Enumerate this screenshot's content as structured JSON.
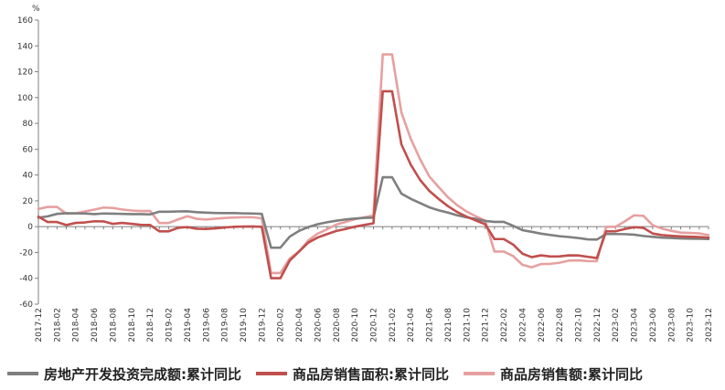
{
  "chart_data": {
    "type": "line",
    "unit": "%",
    "ylim": [
      -60,
      160
    ],
    "yticks": [
      -60,
      -40,
      -20,
      0,
      20,
      40,
      60,
      80,
      100,
      120,
      140,
      160
    ],
    "x": [
      "2017-12",
      "2018-01",
      "2018-02",
      "2018-03",
      "2018-04",
      "2018-05",
      "2018-06",
      "2018-07",
      "2018-08",
      "2018-09",
      "2018-10",
      "2018-11",
      "2018-12",
      "2019-01",
      "2019-02",
      "2019-03",
      "2019-04",
      "2019-05",
      "2019-06",
      "2019-07",
      "2019-08",
      "2019-09",
      "2019-10",
      "2019-11",
      "2019-12",
      "2020-01",
      "2020-02",
      "2020-03",
      "2020-04",
      "2020-05",
      "2020-06",
      "2020-07",
      "2020-08",
      "2020-09",
      "2020-10",
      "2020-11",
      "2020-12",
      "2021-01",
      "2021-02",
      "2021-03",
      "2021-04",
      "2021-05",
      "2021-06",
      "2021-07",
      "2021-08",
      "2021-09",
      "2021-10",
      "2021-11",
      "2021-12",
      "2022-01",
      "2022-02",
      "2022-03",
      "2022-04",
      "2022-05",
      "2022-06",
      "2022-07",
      "2022-08",
      "2022-09",
      "2022-10",
      "2022-11",
      "2022-12",
      "2023-01",
      "2023-02",
      "2023-03",
      "2023-04",
      "2023-05",
      "2023-06",
      "2023-07",
      "2023-08",
      "2023-09",
      "2023-10",
      "2023-11",
      "2023-12"
    ],
    "xticks": [
      "2017-12",
      "2018-02",
      "2018-04",
      "2018-06",
      "2018-08",
      "2018-10",
      "2018-12",
      "2019-02",
      "2019-04",
      "2019-06",
      "2019-08",
      "2019-10",
      "2019-12",
      "2020-02",
      "2020-04",
      "2020-06",
      "2020-08",
      "2020-10",
      "2020-12",
      "2021-02",
      "2021-04",
      "2021-06",
      "2021-08",
      "2021-10",
      "2021-12",
      "2022-02",
      "2022-04",
      "2022-06",
      "2022-08",
      "2022-10",
      "2022-12",
      "2023-02",
      "2023-04",
      "2023-06",
      "2023-08",
      "2023-10",
      "2023-12"
    ],
    "grid": false,
    "legend_position": "bottom",
    "series": [
      {
        "name": "房地产开发投资完成额:累计同比",
        "color": "#7f7f7f",
        "values": [
          7.0,
          8.0,
          9.9,
          10.4,
          10.3,
          10.2,
          9.7,
          10.2,
          10.1,
          9.9,
          9.7,
          9.7,
          9.5,
          11.6,
          11.6,
          11.8,
          11.9,
          11.2,
          10.9,
          10.6,
          10.5,
          10.5,
          10.3,
          10.2,
          9.9,
          -16.3,
          -16.3,
          -7.7,
          -3.3,
          -0.3,
          1.9,
          3.4,
          4.6,
          5.6,
          6.3,
          6.8,
          7.0,
          38.3,
          38.3,
          25.6,
          21.6,
          18.3,
          15.0,
          12.7,
          10.9,
          8.8,
          7.2,
          6.0,
          4.4,
          3.7,
          3.7,
          0.7,
          -2.7,
          -4.0,
          -5.4,
          -6.4,
          -7.4,
          -8.0,
          -8.8,
          -9.8,
          -10.0,
          -5.7,
          -5.7,
          -5.8,
          -6.2,
          -7.2,
          -7.9,
          -8.5,
          -8.8,
          -9.1,
          -9.3,
          -9.4,
          -9.6
        ]
      },
      {
        "name": "商品房销售面积:累计同比",
        "color": "#c0504d",
        "values": [
          7.7,
          3.6,
          3.6,
          1.3,
          2.9,
          3.3,
          4.2,
          4.1,
          2.2,
          2.9,
          2.2,
          1.4,
          1.3,
          -3.6,
          -3.6,
          -0.9,
          -0.3,
          -1.6,
          -1.8,
          -1.3,
          -0.6,
          -0.1,
          0.1,
          0.2,
          -0.1,
          -39.9,
          -39.9,
          -26.3,
          -19.3,
          -12.3,
          -8.4,
          -5.8,
          -3.3,
          -1.8,
          0.0,
          1.3,
          2.6,
          104.9,
          104.9,
          63.8,
          48.1,
          36.3,
          27.7,
          21.5,
          15.9,
          11.3,
          7.8,
          4.8,
          1.9,
          -9.6,
          -9.6,
          -13.8,
          -20.9,
          -23.6,
          -22.2,
          -23.1,
          -23.0,
          -22.2,
          -22.3,
          -23.3,
          -24.3,
          -3.6,
          -3.6,
          -1.8,
          -0.4,
          -0.9,
          -5.3,
          -6.5,
          -7.1,
          -7.5,
          -7.8,
          -8.0,
          -8.5
        ]
      },
      {
        "name": "商品房销售额:累计同比",
        "color": "#e6a0a0",
        "values": [
          13.7,
          15.3,
          15.3,
          10.1,
          10.4,
          11.8,
          13.2,
          14.8,
          14.5,
          13.3,
          12.5,
          12.1,
          12.2,
          2.8,
          2.8,
          5.6,
          8.1,
          6.1,
          5.6,
          6.2,
          6.7,
          7.1,
          7.3,
          7.3,
          6.5,
          -35.9,
          -35.9,
          -24.7,
          -19.3,
          -10.6,
          -5.4,
          -2.1,
          1.6,
          3.7,
          5.8,
          7.2,
          8.7,
          133.4,
          133.4,
          88.5,
          68.2,
          52.4,
          38.9,
          30.7,
          22.8,
          16.6,
          11.8,
          8.0,
          4.8,
          -19.3,
          -19.3,
          -22.7,
          -29.5,
          -31.5,
          -28.9,
          -28.8,
          -27.9,
          -26.3,
          -26.1,
          -26.6,
          -26.7,
          -0.1,
          -0.1,
          4.1,
          8.8,
          8.4,
          1.1,
          -1.5,
          -3.2,
          -4.6,
          -4.9,
          -5.2,
          -6.5
        ]
      }
    ]
  }
}
